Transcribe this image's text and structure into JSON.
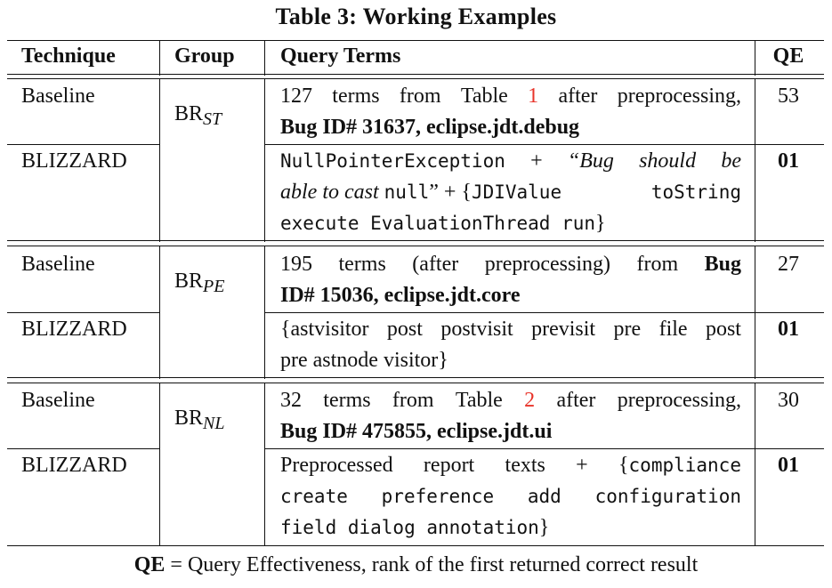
{
  "caption": "Table 3: Working Examples",
  "headers": {
    "technique": "Technique",
    "group": "Group",
    "query_terms": "Query Terms",
    "qe": "QE"
  },
  "groups": [
    {
      "group_base": "BR",
      "group_sub": "ST",
      "baseline": {
        "technique": "Baseline",
        "qe": "53",
        "line1": [
          "127",
          "terms",
          "from",
          "Table",
          "1",
          "after",
          "preprocessing,"
        ],
        "line2_bold": "Bug ID# 31637, eclipse.jdt.debug"
      },
      "blizzard": {
        "technique": "BLIZZARD",
        "qe": "01",
        "line1_mono1": "NullPointerException",
        "line1_plus": "+",
        "line1_ital": [
          "“Bug",
          "should",
          "be"
        ],
        "line2_ital": "able to cast",
        "line2_mono": "null",
        "line2_rest": "” + {",
        "line2_mono2": [
          "JDIValue",
          "toString"
        ],
        "line3_mono": "execute EvaluationThread run",
        "line3_end": "}"
      }
    },
    {
      "group_base": "BR",
      "group_sub": "PE",
      "baseline": {
        "technique": "Baseline",
        "qe": "27",
        "line1": [
          "195",
          "terms",
          "(after",
          "preprocessing)",
          "from"
        ],
        "line1_bold": "Bug",
        "line2_bold": "ID# 15036, eclipse.jdt.core"
      },
      "blizzard": {
        "technique": "BLIZZARD",
        "qe": "01",
        "line1": [
          "{astvisitor",
          "post",
          "postvisit",
          "previsit",
          "pre",
          "file",
          "post"
        ],
        "line2": "pre astnode visitor}"
      }
    },
    {
      "group_base": "BR",
      "group_sub": "NL",
      "baseline": {
        "technique": "Baseline",
        "qe": "30",
        "line1": [
          "32",
          "terms",
          "from",
          "Table",
          "2",
          "after",
          "preprocessing,"
        ],
        "line2_bold": "Bug ID# 475855, eclipse.jdt.ui"
      },
      "blizzard": {
        "technique": "BLIZZARD",
        "qe": "01",
        "line1_text": [
          "Preprocessed",
          "report",
          "texts",
          "+",
          "{"
        ],
        "line1_mono": "compliance",
        "line2_mono": [
          "create",
          "preference",
          "add",
          "configuration"
        ],
        "line3_mono": "field dialog annotation",
        "line3_end": "}"
      }
    }
  ],
  "footnote": {
    "term": "QE",
    "definition": " = Query Effectiveness, rank of the first returned correct result"
  },
  "colors": {
    "reference_link": "#e8342a",
    "text": "#111111"
  }
}
